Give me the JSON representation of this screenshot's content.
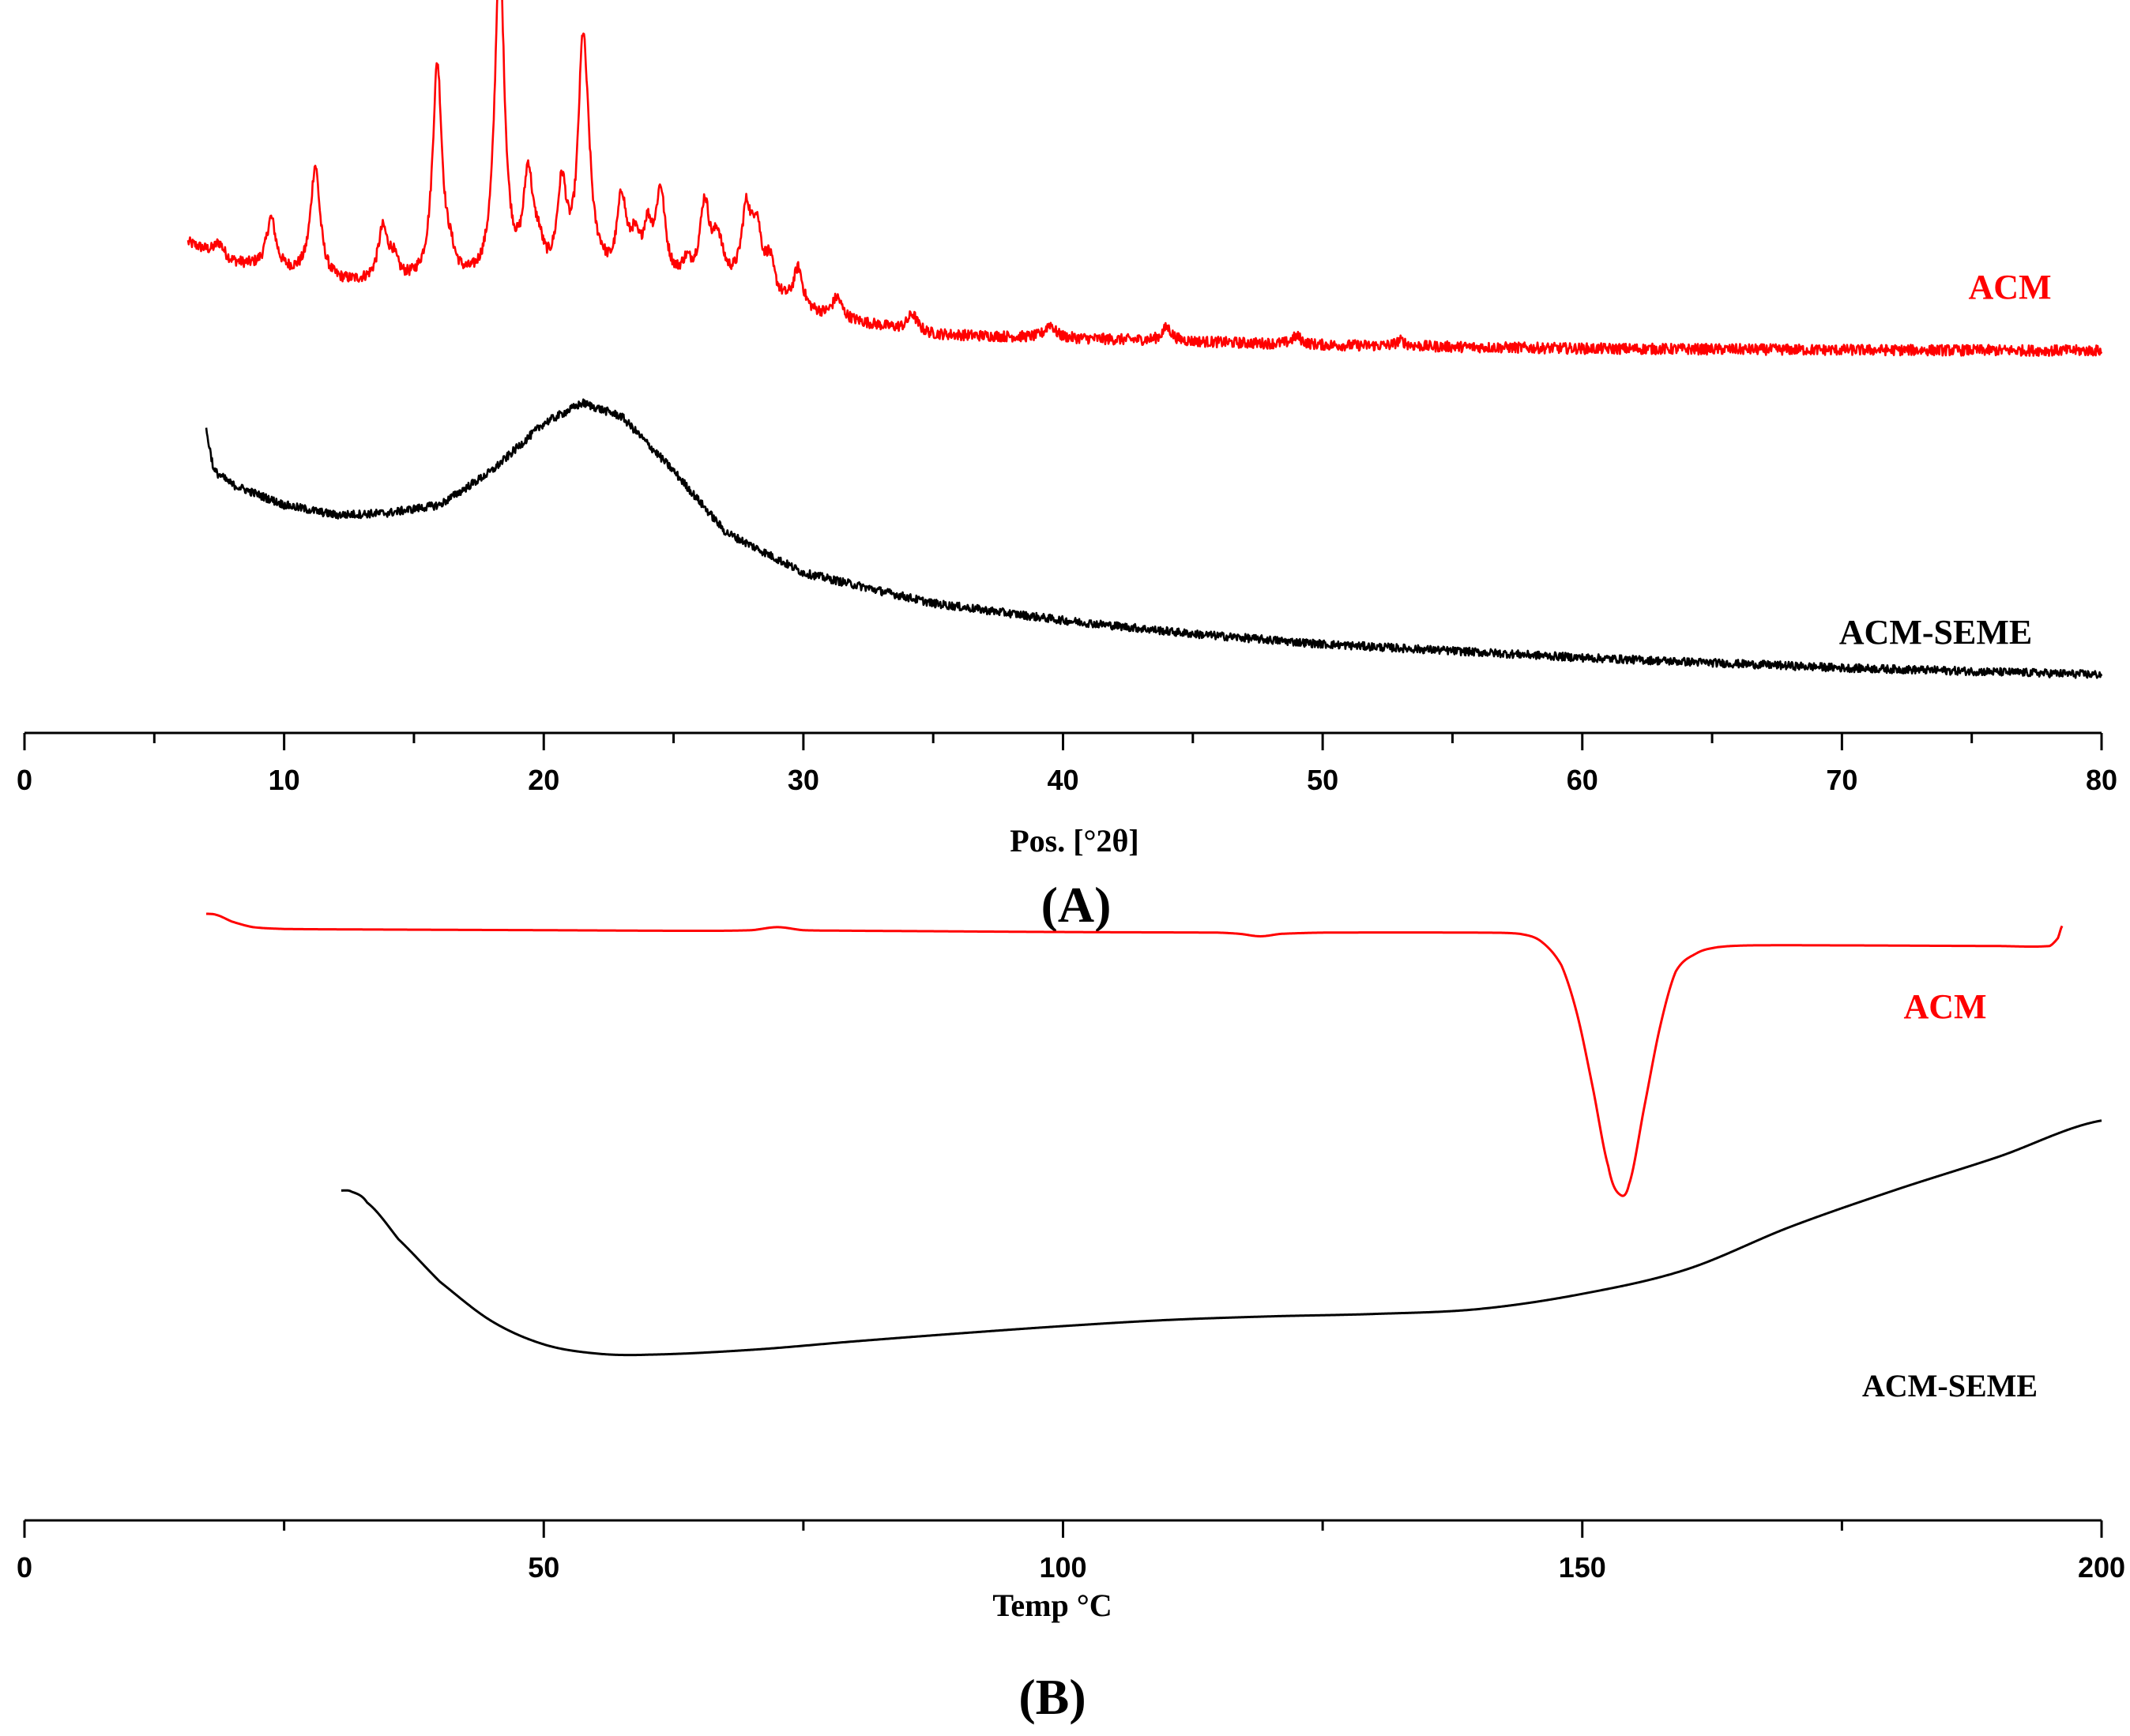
{
  "chart_data": [
    {
      "panel": "A",
      "type": "line",
      "panel_label": "(A)",
      "xlabel": "Pos. [°2θ]",
      "ylabel": "",
      "xlim": [
        0,
        80
      ],
      "x_ticks": [
        0,
        10,
        20,
        30,
        40,
        50,
        60,
        70,
        80
      ],
      "y_axis_shown": false,
      "y_range_relative": [
        0,
        1
      ],
      "colors": {
        "ACM": "#ff0000",
        "ACM-SEME": "#000000"
      },
      "series": [
        {
          "name": "ACM",
          "label": "ACM",
          "color": "#ff0000",
          "noise": 0.008,
          "peak_width": 0.22,
          "baseline": [
            [
              6.3,
              0.665
            ],
            [
              8,
              0.635
            ],
            [
              12,
              0.605
            ],
            [
              16,
              0.6
            ],
            [
              22,
              0.595
            ],
            [
              27,
              0.6
            ],
            [
              30,
              0.56
            ],
            [
              35,
              0.53
            ],
            [
              40,
              0.525
            ],
            [
              45,
              0.52
            ],
            [
              50,
              0.515
            ],
            [
              60,
              0.51
            ],
            [
              70,
              0.508
            ],
            [
              80,
              0.507
            ]
          ],
          "peaks": [
            [
              7.5,
              0.02
            ],
            [
              9.5,
              0.075
            ],
            [
              11.2,
              0.165
            ],
            [
              13.8,
              0.075
            ],
            [
              14.2,
              0.03
            ],
            [
              15.9,
              0.32
            ],
            [
              16.4,
              0.025
            ],
            [
              18.3,
              0.49
            ],
            [
              19.4,
              0.15
            ],
            [
              19.8,
              0.04
            ],
            [
              20.7,
              0.135
            ],
            [
              21.5,
              0.315
            ],
            [
              21.7,
              0.08
            ],
            [
              22.2,
              0.015
            ],
            [
              23.0,
              0.12
            ],
            [
              23.5,
              0.05
            ],
            [
              24.0,
              0.07
            ],
            [
              24.5,
              0.13
            ],
            [
              25.5,
              0.025
            ],
            [
              26.2,
              0.115
            ],
            [
              26.7,
              0.06
            ],
            [
              27.8,
              0.11
            ],
            [
              28.2,
              0.09
            ],
            [
              28.7,
              0.05
            ],
            [
              29.8,
              0.06
            ],
            [
              31.3,
              0.03
            ],
            [
              34.2,
              0.025
            ],
            [
              39.5,
              0.02
            ],
            [
              44.0,
              0.02
            ],
            [
              49.0,
              0.012
            ],
            [
              53.0,
              0.008
            ]
          ]
        },
        {
          "name": "ACM-SEME",
          "label": "ACM-SEME",
          "color": "#000000",
          "noise": 0.006,
          "baseline": [
            [
              7.0,
              0.39
            ],
            [
              7.3,
              0.33
            ],
            [
              8,
              0.31
            ],
            [
              10,
              0.28
            ],
            [
              12,
              0.265
            ],
            [
              14,
              0.268
            ],
            [
              16,
              0.28
            ],
            [
              18,
              0.33
            ],
            [
              20,
              0.4
            ],
            [
              21.5,
              0.43
            ],
            [
              23,
              0.41
            ],
            [
              25,
              0.33
            ],
            [
              27,
              0.24
            ],
            [
              30,
              0.18
            ],
            [
              35,
              0.135
            ],
            [
              40,
              0.11
            ],
            [
              45,
              0.09
            ],
            [
              50,
              0.075
            ],
            [
              60,
              0.055
            ],
            [
              70,
              0.04
            ],
            [
              80,
              0.03
            ]
          ],
          "peaks": []
        }
      ]
    },
    {
      "panel": "B",
      "type": "line",
      "panel_label": "(B)",
      "xlabel": "Temp °C",
      "ylabel": "",
      "xlim": [
        0,
        200
      ],
      "x_ticks": [
        0,
        50,
        100,
        150,
        200
      ],
      "x_minor_ticks": [
        25,
        75,
        125,
        175
      ],
      "y_axis_shown": false,
      "y_range_relative": [
        0,
        1
      ],
      "colors": {
        "ACM": "#ff0000",
        "ACM-SEME": "#000000"
      },
      "series": [
        {
          "name": "ACM",
          "label": "ACM",
          "color": "#ff0000",
          "points": [
            [
              17.5,
              0.965
            ],
            [
              18.5,
              0.963
            ],
            [
              20,
              0.952
            ],
            [
              22,
              0.943
            ],
            [
              25,
              0.94
            ],
            [
              35,
              0.939
            ],
            [
              50,
              0.938
            ],
            [
              65,
              0.937
            ],
            [
              70,
              0.938
            ],
            [
              72.5,
              0.943
            ],
            [
              75,
              0.938
            ],
            [
              80,
              0.937
            ],
            [
              100,
              0.935
            ],
            [
              115,
              0.934
            ],
            [
              117,
              0.932
            ],
            [
              119,
              0.928
            ],
            [
              121,
              0.932
            ],
            [
              125,
              0.934
            ],
            [
              140,
              0.934
            ],
            [
              144,
              0.932
            ],
            [
              146,
              0.92
            ],
            [
              148,
              0.88
            ],
            [
              149.5,
              0.8
            ],
            [
              151,
              0.68
            ],
            [
              152.5,
              0.55
            ],
            [
              153.5,
              0.505
            ],
            [
              154.5,
              0.52
            ],
            [
              156,
              0.65
            ],
            [
              157.5,
              0.78
            ],
            [
              159,
              0.87
            ],
            [
              161,
              0.9
            ],
            [
              163,
              0.91
            ],
            [
              166,
              0.913
            ],
            [
              175,
              0.913
            ],
            [
              190,
              0.912
            ],
            [
              195,
              0.912
            ],
            [
              195.8,
              0.925
            ],
            [
              196.2,
              0.945
            ]
          ]
        },
        {
          "name": "ACM-SEME",
          "label": "ACM-SEME",
          "color": "#000000",
          "points": [
            [
              30.5,
              0.51
            ],
            [
              31.5,
              0.508
            ],
            [
              33,
              0.49
            ],
            [
              36,
              0.43
            ],
            [
              40,
              0.36
            ],
            [
              45,
              0.295
            ],
            [
              50,
              0.257
            ],
            [
              55,
              0.242
            ],
            [
              60,
              0.24
            ],
            [
              70,
              0.248
            ],
            [
              80,
              0.262
            ],
            [
              90,
              0.275
            ],
            [
              100,
              0.287
            ],
            [
              110,
              0.297
            ],
            [
              120,
              0.303
            ],
            [
              130,
              0.307
            ],
            [
              140,
              0.315
            ],
            [
              150,
              0.34
            ],
            [
              160,
              0.38
            ],
            [
              170,
              0.45
            ],
            [
              180,
              0.51
            ],
            [
              190,
              0.565
            ],
            [
              200,
              0.625
            ]
          ]
        }
      ]
    }
  ]
}
